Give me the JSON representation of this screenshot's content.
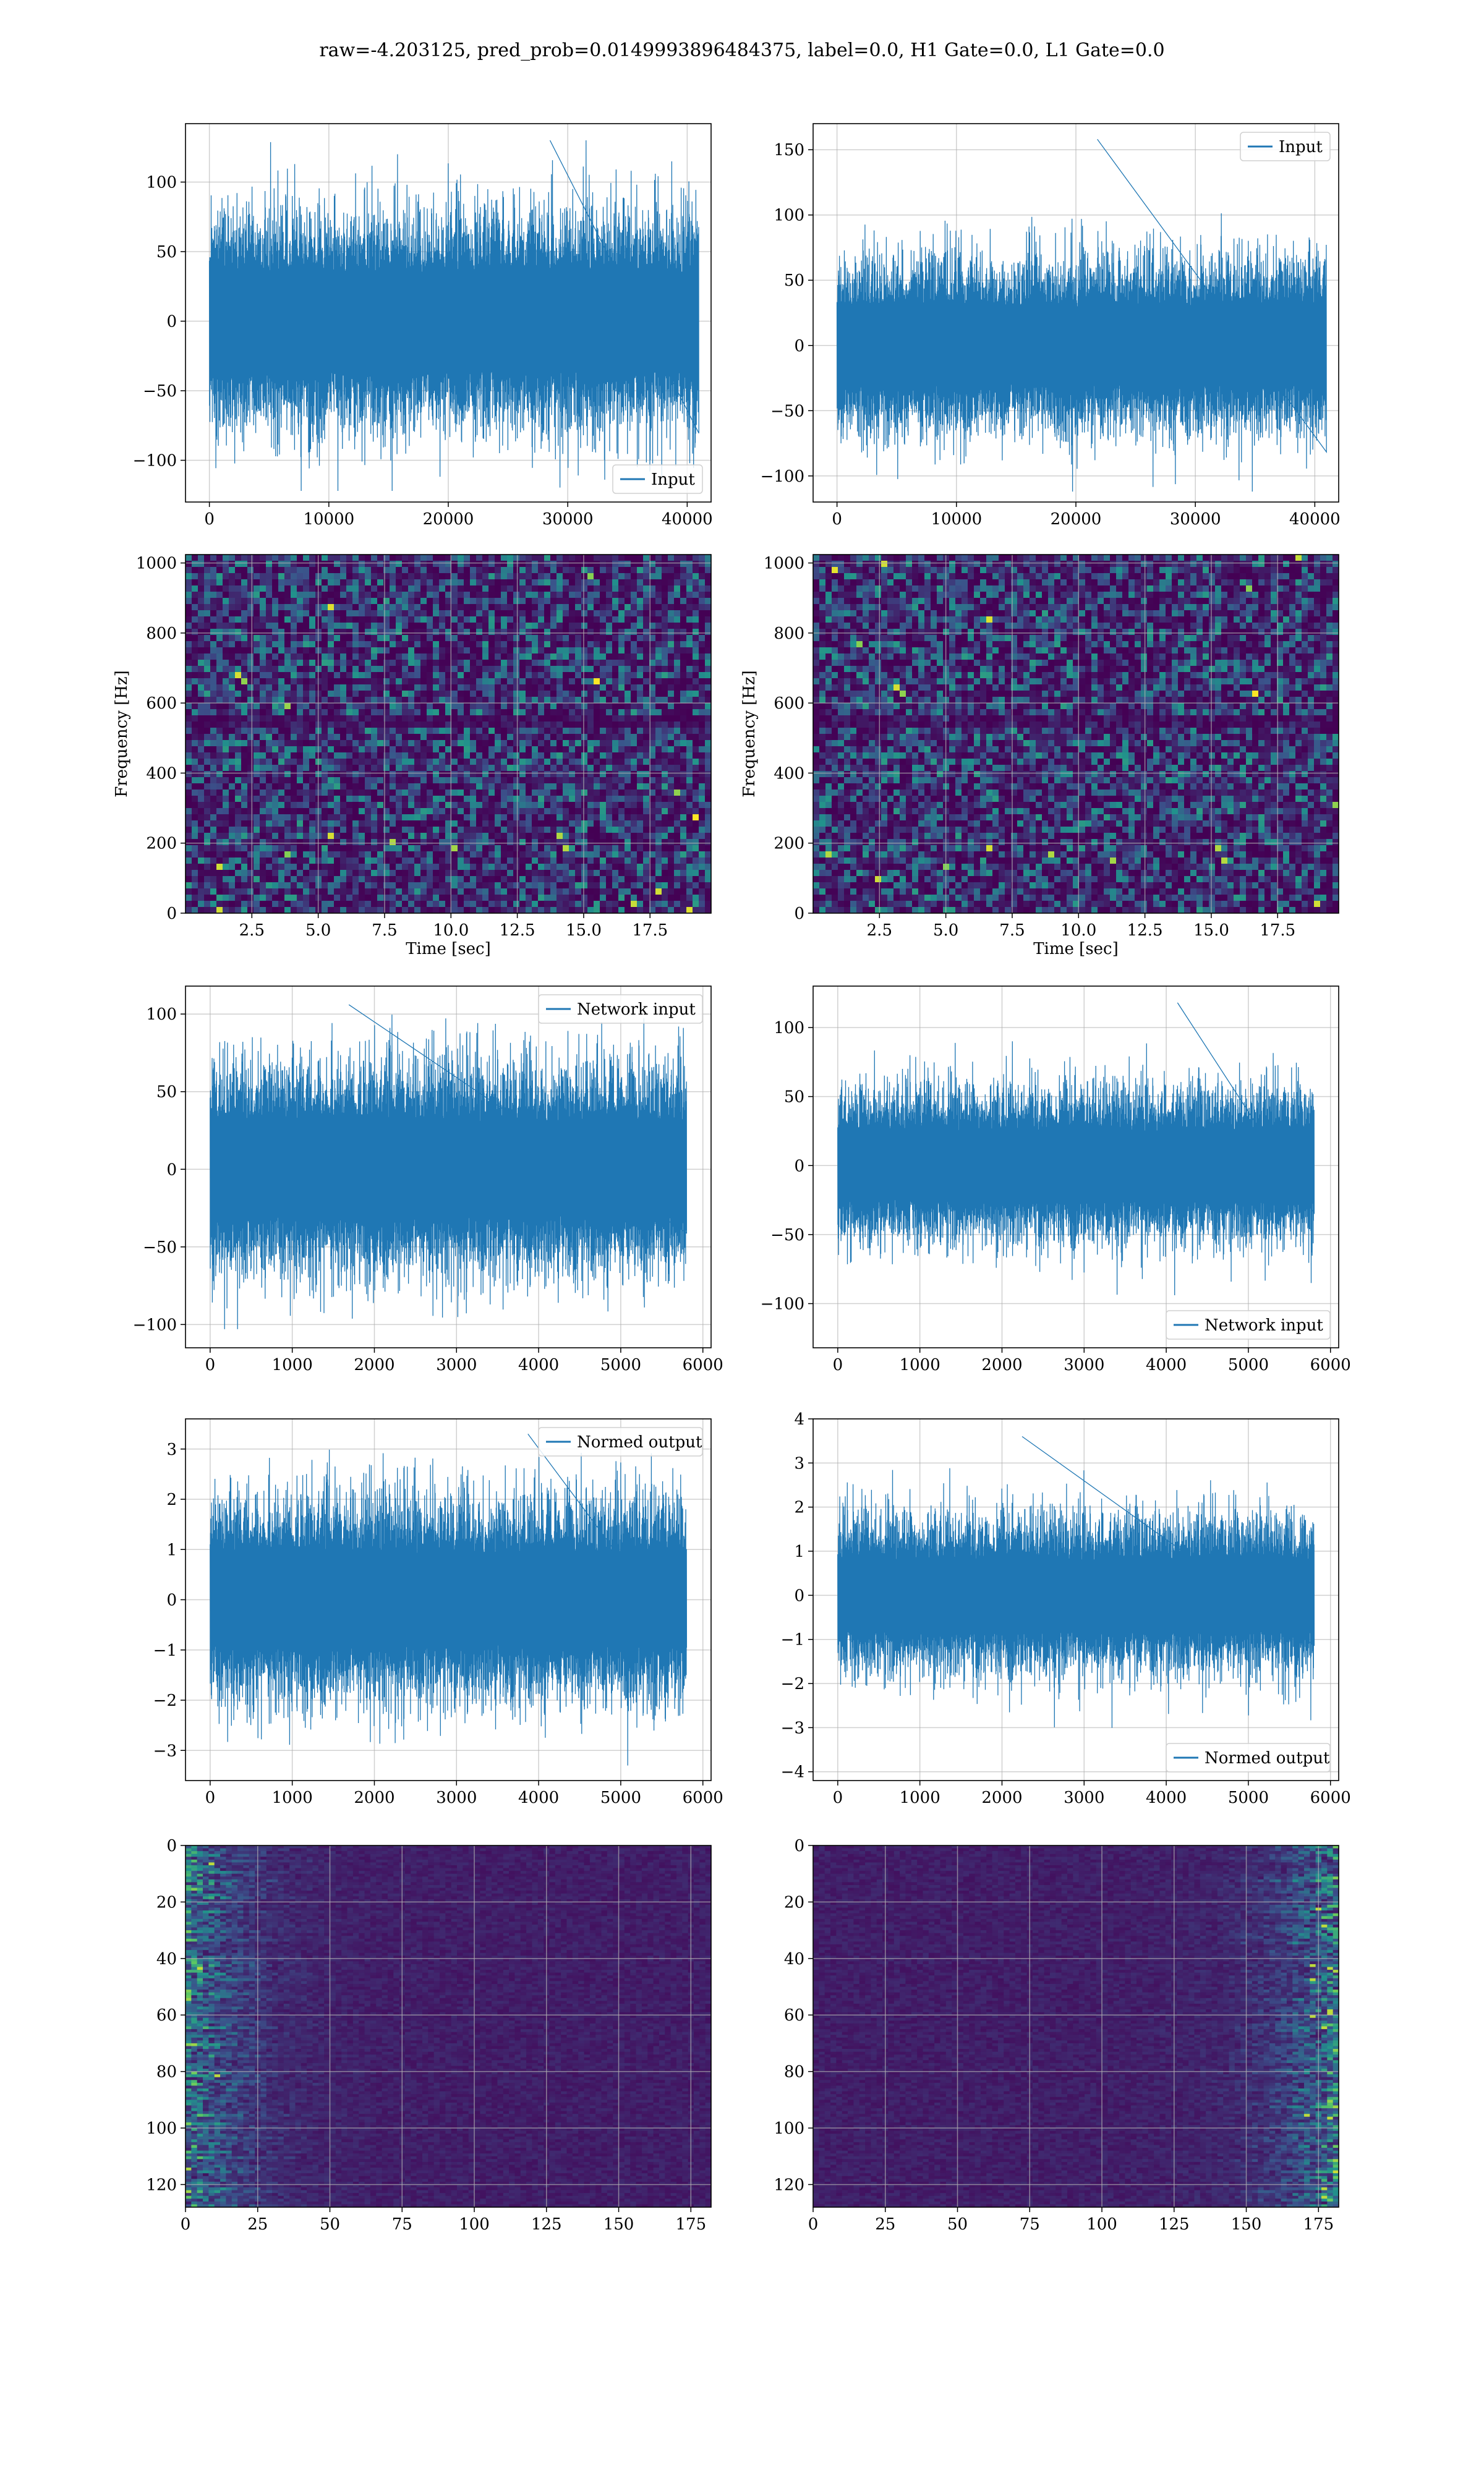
{
  "figure": {
    "title": "raw=-4.203125, pred_prob=0.0149993896484375, label=0.0, H1 Gate=0.0, L1 Gate=0.0"
  },
  "colors": {
    "series": "#1f77b4",
    "grid": "#b0b0b0",
    "viridis_dark": "#440154",
    "viridis_blue": "#3b528b",
    "viridis_teal": "#21918c",
    "viridis_green": "#5ec962",
    "viridis_yellow": "#fde725"
  },
  "chart_data": [
    {
      "type": "line",
      "position": "row1-left",
      "series": [
        {
          "name": "Input",
          "n_points": 40960,
          "amplitude_typical": 70,
          "peak_max": 130,
          "peak_min": -122
        }
      ],
      "xlim": [
        -2000,
        42000
      ],
      "ylim": [
        -130,
        142
      ],
      "xticks": [
        0,
        10000,
        20000,
        30000,
        40000
      ],
      "yticks": [
        -100,
        -50,
        0,
        50,
        100
      ],
      "legend": "lower right",
      "grid": true,
      "xlabel": "",
      "ylabel": ""
    },
    {
      "type": "line",
      "position": "row1-right",
      "series": [
        {
          "name": "Input",
          "n_points": 40960,
          "amplitude_typical": 60,
          "peak_max": 158,
          "peak_min": -112
        }
      ],
      "xlim": [
        -2000,
        42000
      ],
      "ylim": [
        -120,
        170
      ],
      "xticks": [
        0,
        10000,
        20000,
        30000,
        40000
      ],
      "yticks": [
        -100,
        -50,
        0,
        50,
        100,
        150
      ],
      "legend": "upper right",
      "grid": true,
      "xlabel": "",
      "ylabel": ""
    },
    {
      "type": "heatmap",
      "position": "row2-left",
      "xlim": [
        0,
        19.8
      ],
      "ylim": [
        0,
        1024
      ],
      "xticks": [
        2.5,
        5.0,
        7.5,
        10.0,
        12.5,
        15.0,
        17.5
      ],
      "yticks": [
        0,
        200,
        400,
        600,
        800,
        1000
      ],
      "xtick_labels": [
        "2.5",
        "5.0",
        "7.5",
        "10.0",
        "12.5",
        "15.0",
        "17.5"
      ],
      "xlabel": "Time [sec]",
      "ylabel": "Frequency [Hz]",
      "colormap": "viridis",
      "grid": true
    },
    {
      "type": "heatmap",
      "position": "row2-right",
      "xlim": [
        0,
        19.8
      ],
      "ylim": [
        0,
        1024
      ],
      "xticks": [
        2.5,
        5.0,
        7.5,
        10.0,
        12.5,
        15.0,
        17.5
      ],
      "yticks": [
        0,
        200,
        400,
        600,
        800,
        1000
      ],
      "xtick_labels": [
        "2.5",
        "5.0",
        "7.5",
        "10.0",
        "12.5",
        "15.0",
        "17.5"
      ],
      "xlabel": "Time [sec]",
      "ylabel": "Frequency [Hz]",
      "colormap": "viridis",
      "grid": true
    },
    {
      "type": "line",
      "position": "row3-left",
      "series": [
        {
          "name": "Network input",
          "n_points": 5800,
          "amplitude_typical": 60,
          "peak_max": 106,
          "peak_min": -103
        }
      ],
      "xlim": [
        -300,
        6100
      ],
      "ylim": [
        -115,
        118
      ],
      "xticks": [
        0,
        1000,
        2000,
        3000,
        4000,
        5000,
        6000
      ],
      "yticks": [
        -100,
        -50,
        0,
        50,
        100
      ],
      "legend": "upper right",
      "grid": true,
      "xlabel": "",
      "ylabel": ""
    },
    {
      "type": "line",
      "position": "row3-right",
      "series": [
        {
          "name": "Network input",
          "n_points": 5800,
          "amplitude_typical": 50,
          "peak_max": 118,
          "peak_min": -110
        }
      ],
      "xlim": [
        -300,
        6100
      ],
      "ylim": [
        -132,
        130
      ],
      "xticks": [
        0,
        1000,
        2000,
        3000,
        4000,
        5000,
        6000
      ],
      "yticks": [
        -100,
        -50,
        0,
        50,
        100
      ],
      "legend": "lower right",
      "grid": true,
      "xlabel": "",
      "ylabel": ""
    },
    {
      "type": "line",
      "position": "row4-left",
      "series": [
        {
          "name": "Normed output",
          "n_points": 5800,
          "amplitude_typical": 1.8,
          "peak_max": 3.3,
          "peak_min": -3.3
        }
      ],
      "xlim": [
        -300,
        6100
      ],
      "ylim": [
        -3.6,
        3.6
      ],
      "xticks": [
        0,
        1000,
        2000,
        3000,
        4000,
        5000,
        6000
      ],
      "yticks": [
        -3,
        -2,
        -1,
        0,
        1,
        2,
        3
      ],
      "legend": "upper right",
      "grid": true,
      "xlabel": "",
      "ylabel": ""
    },
    {
      "type": "line",
      "position": "row4-right",
      "series": [
        {
          "name": "Normed output",
          "n_points": 5800,
          "amplitude_typical": 1.6,
          "peak_max": 3.6,
          "peak_min": -3.7
        }
      ],
      "xlim": [
        -300,
        6100
      ],
      "ylim": [
        -4.2,
        4.0
      ],
      "xticks": [
        0,
        1000,
        2000,
        3000,
        4000,
        5000,
        6000
      ],
      "yticks": [
        -4,
        -3,
        -2,
        -1,
        0,
        1,
        2,
        3,
        4
      ],
      "legend": "lower right",
      "grid": true,
      "xlabel": "",
      "ylabel": ""
    },
    {
      "type": "heatmap",
      "position": "row5-left",
      "xlim": [
        0,
        182
      ],
      "ylim": [
        128,
        0
      ],
      "xticks": [
        0,
        25,
        50,
        75,
        100,
        125,
        150,
        175
      ],
      "yticks": [
        0,
        20,
        40,
        60,
        80,
        100,
        120
      ],
      "colormap": "viridis",
      "grid": true,
      "bright_region": "left",
      "xlabel": "",
      "ylabel": ""
    },
    {
      "type": "heatmap",
      "position": "row5-right",
      "xlim": [
        0,
        182
      ],
      "ylim": [
        128,
        0
      ],
      "xticks": [
        0,
        25,
        50,
        75,
        100,
        125,
        150,
        175
      ],
      "yticks": [
        0,
        20,
        40,
        60,
        80,
        100,
        120
      ],
      "colormap": "viridis",
      "grid": true,
      "bright_region": "right",
      "xlabel": "",
      "ylabel": ""
    }
  ]
}
